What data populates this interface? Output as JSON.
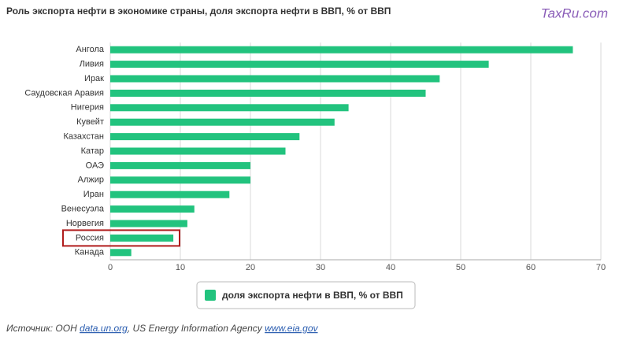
{
  "chart_data": {
    "type": "bar",
    "orientation": "horizontal",
    "title": "Роль экспорта нефти в экономике страны, доля экспорта нефти в ВВП, % от ВВП",
    "watermark": "TaxRu.com",
    "categories": [
      "Ангола",
      "Ливия",
      "Ирак",
      "Саудовская Аравия",
      "Нигерия",
      "Кувейт",
      "Казахстан",
      "Катар",
      "ОАЭ",
      "Алжир",
      "Иран",
      "Венесуэла",
      "Норвегия",
      "Россия",
      "Канада"
    ],
    "series": [
      {
        "name": "доля экспорта нефти в ВВП, % от ВВП",
        "color": "#22c37e",
        "values": [
          66,
          54,
          47,
          45,
          34,
          32,
          27,
          25,
          20,
          20,
          17,
          12,
          11,
          9,
          3
        ]
      }
    ],
    "xlim": [
      0,
      70
    ],
    "xticks": [
      0,
      10,
      20,
      30,
      40,
      50,
      60,
      70
    ],
    "grid": true,
    "highlight": 13,
    "highlight_color": "#b01c1c",
    "legend": "bottom",
    "source": {
      "prefix": "Источник: ООН",
      "link1": "data.un.org",
      "middle": ", US Energy Information Agency",
      "link2": "www.eia.gov"
    }
  }
}
